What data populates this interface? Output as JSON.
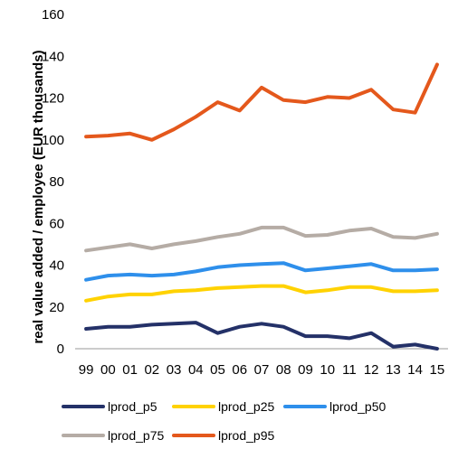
{
  "chart_data": {
    "type": "line",
    "title": "",
    "xlabel": "",
    "ylabel": "real value added / employee (EUR thousands)",
    "categories": [
      "99",
      "00",
      "01",
      "02",
      "03",
      "04",
      "05",
      "06",
      "07",
      "08",
      "09",
      "10",
      "11",
      "12",
      "13",
      "14",
      "15"
    ],
    "ylim": [
      0,
      160
    ],
    "yticks": [
      0,
      20,
      40,
      60,
      80,
      100,
      120,
      140,
      160
    ],
    "grid": false,
    "legend_position": "bottom",
    "series": [
      {
        "name": "lprod_p5",
        "color": "#243168",
        "values": [
          9.5,
          10.5,
          10.5,
          11.5,
          12,
          12.5,
          7.5,
          10.5,
          12,
          10.5,
          6,
          6,
          5,
          7.5,
          1,
          2,
          0
        ]
      },
      {
        "name": "lprod_p25",
        "color": "#FFD200",
        "values": [
          23,
          25,
          26,
          26,
          27.5,
          28,
          29,
          29.5,
          30,
          30,
          27,
          28,
          29.5,
          29.5,
          27.5,
          27.5,
          28
        ]
      },
      {
        "name": "lprod_p50",
        "color": "#2E8FEB",
        "values": [
          33,
          35,
          35.5,
          35,
          35.5,
          37,
          39,
          40,
          40.5,
          41,
          37.5,
          38.5,
          39.5,
          40.5,
          37.5,
          37.5,
          38
        ]
      },
      {
        "name": "lprod_p75",
        "color": "#B5ACA5",
        "values": [
          47,
          48.5,
          50,
          48,
          50,
          51.5,
          53.5,
          55,
          58,
          58,
          54,
          54.5,
          56.5,
          57.5,
          53.5,
          53,
          55
        ]
      },
      {
        "name": "lprod_p95",
        "color": "#E4581C",
        "values": [
          101.5,
          102,
          103,
          100,
          105,
          111,
          118,
          114,
          125,
          119,
          118,
          120.5,
          120,
          124,
          114.5,
          113,
          136
        ]
      }
    ]
  }
}
